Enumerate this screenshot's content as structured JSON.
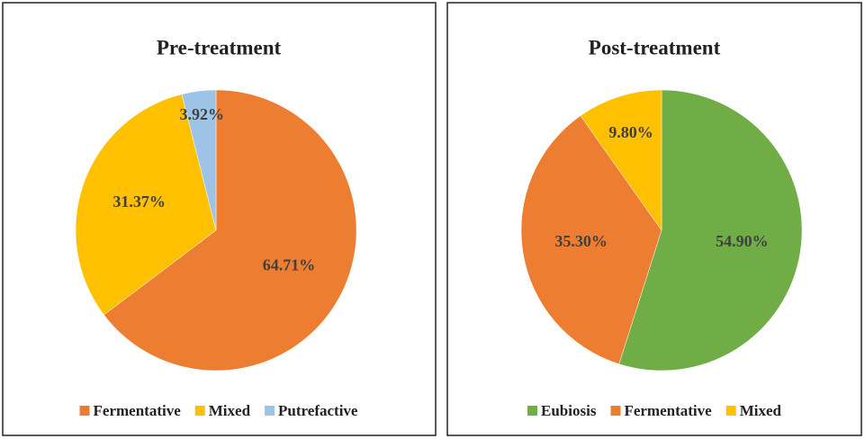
{
  "chart_data": [
    {
      "type": "pie",
      "title": "Pre-treatment",
      "categories": [
        "Fermentative",
        "Mixed",
        "Putrefactive"
      ],
      "values": [
        64.71,
        31.37,
        3.92
      ],
      "value_labels": [
        "64.71%",
        "31.37%",
        "3.92%"
      ],
      "colors": [
        "#ed7d31",
        "#ffc000",
        "#9dc3e6"
      ],
      "legend": "bottom"
    },
    {
      "type": "pie",
      "title": "Post-treatment",
      "categories": [
        "Eubiosis",
        "Fermentative",
        "Mixed"
      ],
      "values": [
        54.9,
        35.3,
        9.8
      ],
      "value_labels": [
        "54.90%",
        "35.30%",
        "9.80%"
      ],
      "colors": [
        "#70ad47",
        "#ed7d31",
        "#ffc000"
      ],
      "legend": "bottom"
    }
  ]
}
